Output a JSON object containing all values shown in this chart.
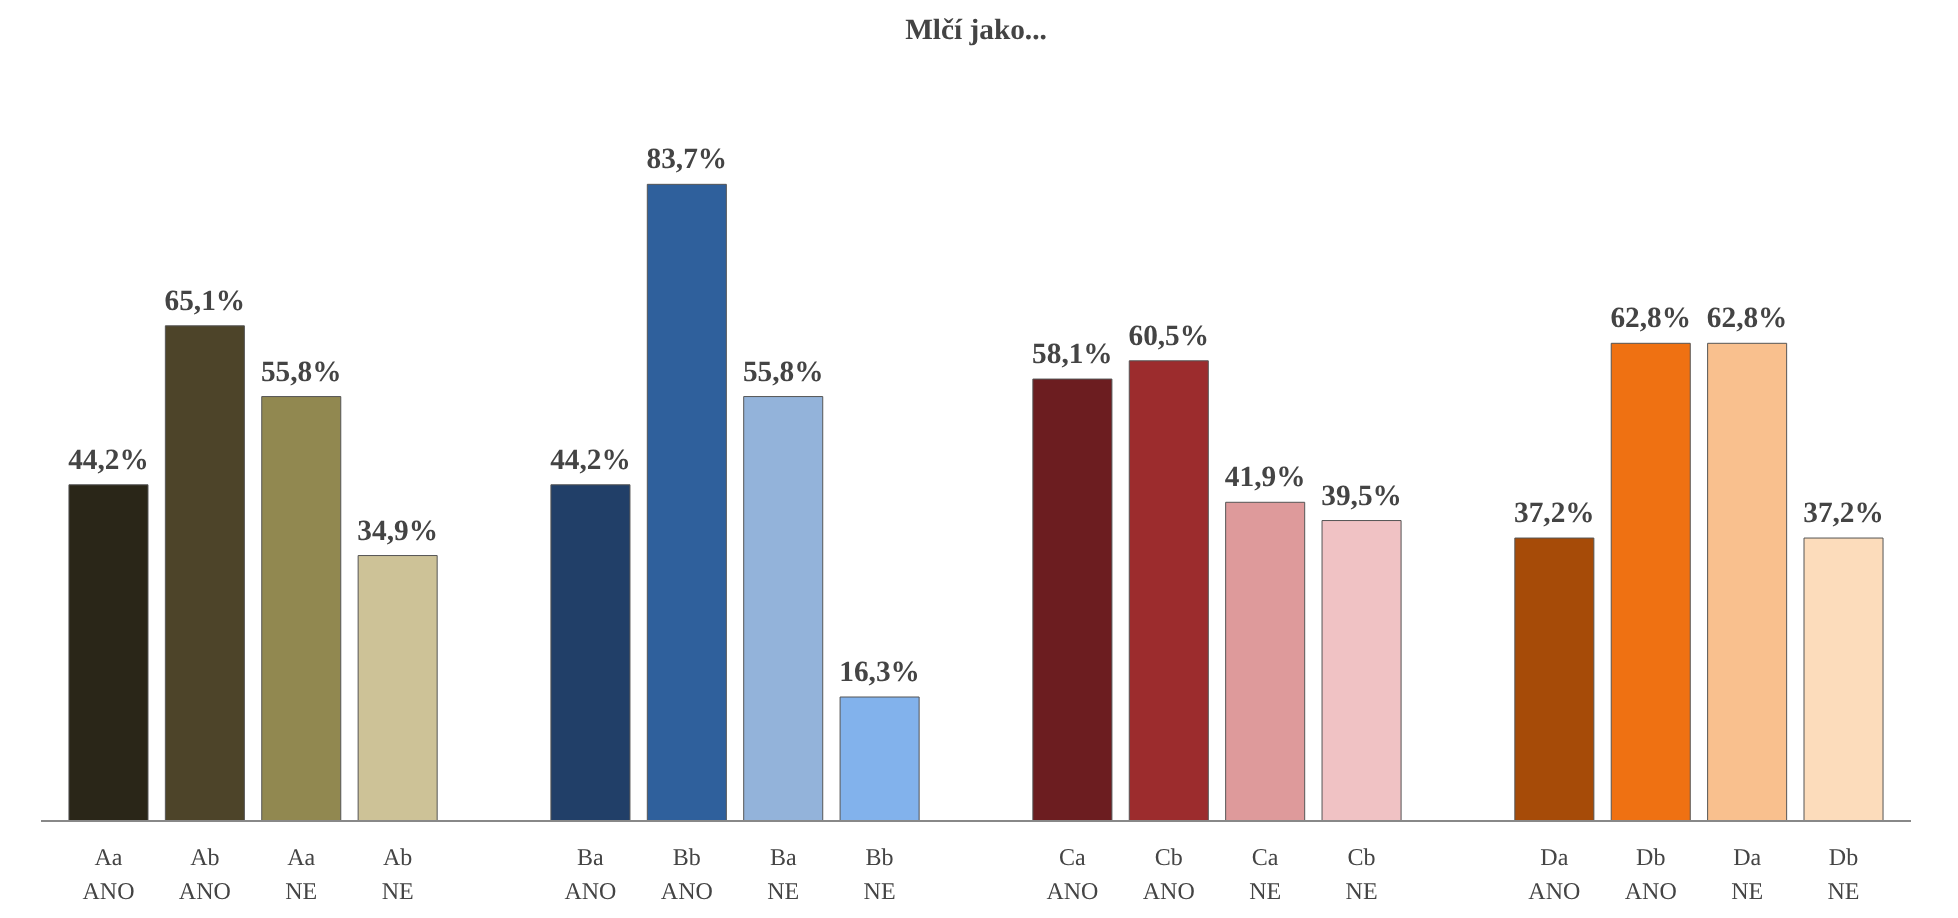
{
  "chart_data": {
    "type": "bar",
    "title": "Mlčí jako...",
    "categories": [
      "Aa\nANO",
      "Ab\nANO",
      "Aa\nNE",
      "Ab\nNE",
      null,
      "Ba\nANO",
      "Bb\nANO",
      "Ba\nNE",
      "Bb\nNE",
      null,
      "Ca\nANO",
      "Cb\nANO",
      "Ca\nNE",
      "Cb\nNE",
      null,
      "Da\nANO",
      "Db\nANO",
      "Da\nNE",
      "Db\nNE"
    ],
    "values": [
      44.2,
      65.1,
      55.8,
      34.9,
      null,
      44.2,
      83.7,
      55.8,
      16.3,
      null,
      58.1,
      60.5,
      41.9,
      39.5,
      null,
      37.2,
      62.8,
      62.8,
      37.2
    ],
    "value_labels": [
      "44,2%",
      "65,1%",
      "55,8%",
      "34,9%",
      null,
      "44,2%",
      "83,7%",
      "55,8%",
      "16,3%",
      null,
      "58,1%",
      "60,5%",
      "41,9%",
      "39,5%",
      null,
      "37,2%",
      "62,8%",
      "62,8%",
      "37,2%"
    ],
    "colors": [
      "#2a2618",
      "#4d4429",
      "#918850",
      "#cdc297",
      null,
      "#213f68",
      "#2f609c",
      "#93b3da",
      "#82b2ec",
      null,
      "#6c1d20",
      "#9c2c2d",
      "#de9a9b",
      "#f0c2c4",
      null,
      "#a64b08",
      "#ef7112",
      "#f9c08e",
      "#fcdcbb"
    ],
    "grid": false
  }
}
